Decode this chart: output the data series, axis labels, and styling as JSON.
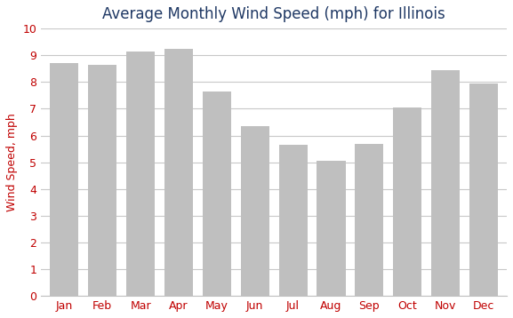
{
  "title": "Average Monthly Wind Speed (mph) for Illinois",
  "ylabel": "Wind Speed, mph",
  "months": [
    "Jan",
    "Feb",
    "Mar",
    "Apr",
    "May",
    "Jun",
    "Jul",
    "Aug",
    "Sep",
    "Oct",
    "Nov",
    "Dec"
  ],
  "values": [
    8.7,
    8.65,
    9.15,
    9.25,
    7.65,
    6.35,
    5.65,
    5.05,
    5.7,
    7.05,
    8.45,
    7.95
  ],
  "bar_color": "#bfbfbf",
  "bar_edgecolor": "#bfbfbf",
  "ylim": [
    0,
    10
  ],
  "yticks": [
    0,
    1,
    2,
    3,
    4,
    5,
    6,
    7,
    8,
    9,
    10
  ],
  "grid_color": "#c8c8c8",
  "title_fontsize": 12,
  "title_color": "#1f3864",
  "ylabel_fontsize": 9,
  "ylabel_color": "#c00000",
  "tick_fontsize": 9,
  "tick_color": "#c00000",
  "background_color": "#ffffff",
  "bar_width": 0.75,
  "plot_bg": "#ffffff",
  "spine_color": "#c0c0c0"
}
